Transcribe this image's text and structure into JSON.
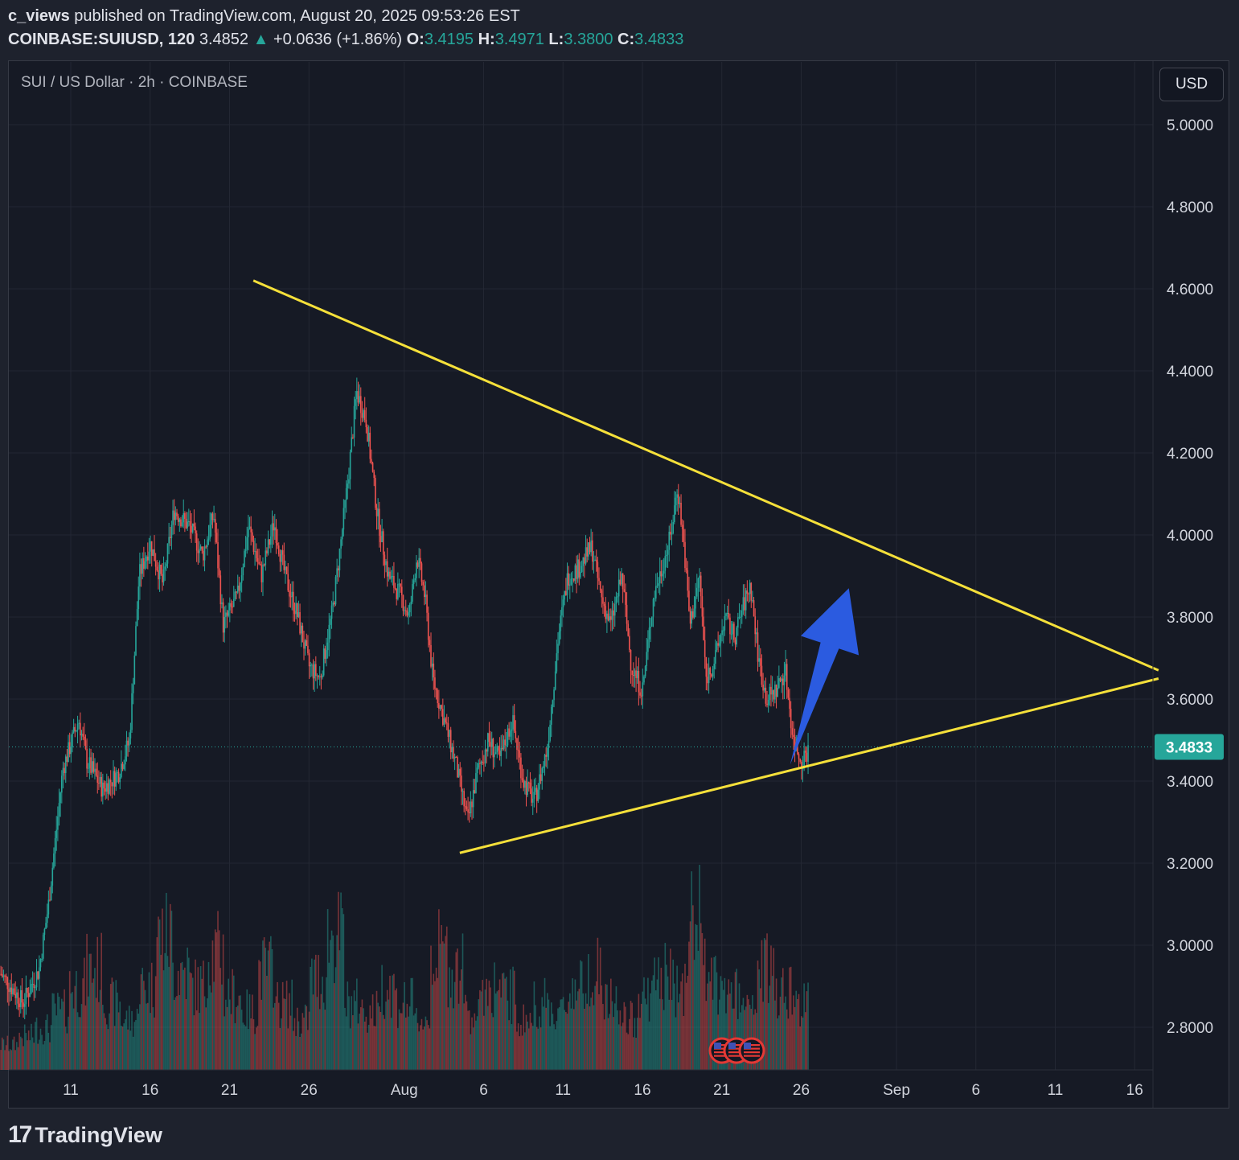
{
  "header": {
    "author": "c_views",
    "published_text": "published on TradingView.com, August 20, 2025 09:53:26 EST",
    "symbol": "COINBASE:SUIUSD, 120",
    "last": "3.4852",
    "change_arrow": "▲",
    "change": "+0.0636 (+1.86%)",
    "o_label": "O:",
    "o_value": "3.4195",
    "h_label": "H:",
    "h_value": "3.4971",
    "l_label": "L:",
    "l_value": "3.3800",
    "c_label": "C:",
    "c_value": "3.4833"
  },
  "legend": {
    "title": "SUI / US Dollar · 2h · COINBASE"
  },
  "currency_button": {
    "label": "USD"
  },
  "footer": {
    "logo_mark": "17",
    "logo_text": "TradingView"
  },
  "colors": {
    "up": "#26a69a",
    "down": "#ef5350",
    "trendline": "#f5e03a",
    "arrow": "#2b5be0",
    "price_tag": "#26a69a"
  },
  "chart_data": {
    "type": "candlestick",
    "symbol": "COINBASE:SUIUSD",
    "timeframe": "2h",
    "y_axis": {
      "min": 2.7,
      "max": 5.05,
      "ticks": [
        5.0,
        4.8,
        4.6,
        4.4,
        4.2,
        4.0,
        3.8,
        3.6,
        3.4,
        3.2,
        3.0,
        2.8
      ]
    },
    "y_tick_labels": [
      "5.0000",
      "4.8000",
      "4.6000",
      "4.4000",
      "4.2000",
      "4.0000",
      "3.8000",
      "3.6000",
      "3.4000",
      "3.2000",
      "3.0000",
      "2.8000"
    ],
    "x_axis": {
      "tick_labels": [
        "11",
        "16",
        "21",
        "26",
        "Aug",
        "6",
        "11",
        "16",
        "21",
        "26",
        "Sep",
        "6",
        "11",
        "16"
      ],
      "tick_days": [
        10,
        15,
        20,
        25,
        31,
        36,
        41,
        46,
        51,
        56,
        62,
        67,
        72,
        77
      ]
    },
    "last_price": 3.4833,
    "last_price_label": "3.4833",
    "price_path": [
      [
        5.6,
        2.93
      ],
      [
        7.0,
        2.86
      ],
      [
        8.0,
        2.94
      ],
      [
        8.6,
        3.1
      ],
      [
        9.5,
        3.43
      ],
      [
        10.5,
        3.55
      ],
      [
        11.0,
        3.45
      ],
      [
        12.0,
        3.38
      ],
      [
        13.0,
        3.42
      ],
      [
        13.7,
        3.5
      ],
      [
        14.3,
        3.9
      ],
      [
        15.0,
        3.98
      ],
      [
        15.8,
        3.88
      ],
      [
        16.5,
        4.06
      ],
      [
        17.5,
        4.02
      ],
      [
        18.3,
        3.95
      ],
      [
        19.0,
        4.05
      ],
      [
        19.6,
        3.78
      ],
      [
        20.5,
        3.85
      ],
      [
        21.2,
        4.02
      ],
      [
        22.0,
        3.9
      ],
      [
        22.8,
        4.03
      ],
      [
        23.5,
        3.9
      ],
      [
        24.3,
        3.8
      ],
      [
        25.0,
        3.68
      ],
      [
        25.7,
        3.65
      ],
      [
        26.5,
        3.82
      ],
      [
        27.0,
        3.98
      ],
      [
        27.5,
        4.15
      ],
      [
        28.0,
        4.35
      ],
      [
        28.6,
        4.28
      ],
      [
        29.3,
        4.05
      ],
      [
        30.0,
        3.9
      ],
      [
        30.8,
        3.85
      ],
      [
        31.3,
        3.8
      ],
      [
        31.8,
        3.95
      ],
      [
        32.3,
        3.85
      ],
      [
        32.8,
        3.65
      ],
      [
        33.5,
        3.55
      ],
      [
        34.2,
        3.45
      ],
      [
        35.0,
        3.3
      ],
      [
        35.6,
        3.42
      ],
      [
        36.3,
        3.5
      ],
      [
        37.0,
        3.45
      ],
      [
        37.8,
        3.55
      ],
      [
        38.5,
        3.4
      ],
      [
        39.2,
        3.35
      ],
      [
        40.0,
        3.48
      ],
      [
        40.7,
        3.75
      ],
      [
        41.3,
        3.9
      ],
      [
        42.0,
        3.92
      ],
      [
        42.8,
        3.97
      ],
      [
        43.4,
        3.85
      ],
      [
        44.0,
        3.78
      ],
      [
        44.7,
        3.9
      ],
      [
        45.3,
        3.68
      ],
      [
        46.0,
        3.62
      ],
      [
        46.7,
        3.85
      ],
      [
        47.3,
        3.93
      ],
      [
        47.8,
        4.0
      ],
      [
        48.2,
        4.12
      ],
      [
        48.6,
        3.98
      ],
      [
        49.0,
        3.78
      ],
      [
        49.6,
        3.9
      ],
      [
        50.0,
        3.65
      ],
      [
        50.6,
        3.7
      ],
      [
        51.2,
        3.8
      ],
      [
        51.8,
        3.75
      ],
      [
        52.3,
        3.82
      ],
      [
        52.8,
        3.88
      ],
      [
        53.3,
        3.7
      ],
      [
        53.8,
        3.6
      ],
      [
        54.4,
        3.62
      ],
      [
        55.0,
        3.67
      ],
      [
        55.5,
        3.5
      ],
      [
        56.0,
        3.45
      ],
      [
        56.5,
        3.48
      ]
    ],
    "volume_profile": [
      0.15,
      0.2,
      0.25,
      0.35,
      0.5,
      0.6,
      0.4,
      0.3,
      0.5,
      0.8,
      0.6,
      0.5,
      0.7,
      0.45,
      0.35,
      0.6,
      0.4,
      0.3,
      0.55,
      0.8,
      0.4,
      0.35,
      0.5,
      0.4,
      0.3,
      0.7,
      0.6,
      0.35,
      0.5,
      0.45,
      0.3,
      0.4,
      0.35,
      0.5,
      0.6,
      0.4,
      0.3,
      0.45,
      0.55,
      0.5,
      0.9,
      0.5,
      0.45,
      0.35,
      0.6,
      0.5,
      0.4
    ],
    "trendlines": [
      {
        "name": "upper-resistance",
        "from": [
          21.5,
          4.62
        ],
        "to": [
          78.5,
          3.67
        ]
      },
      {
        "name": "lower-support",
        "from": [
          34.5,
          3.225
        ],
        "to": [
          78.5,
          3.65
        ]
      }
    ],
    "arrow": {
      "from": [
        55.3,
        3.44
      ],
      "to": [
        59.0,
        3.87
      ]
    }
  }
}
